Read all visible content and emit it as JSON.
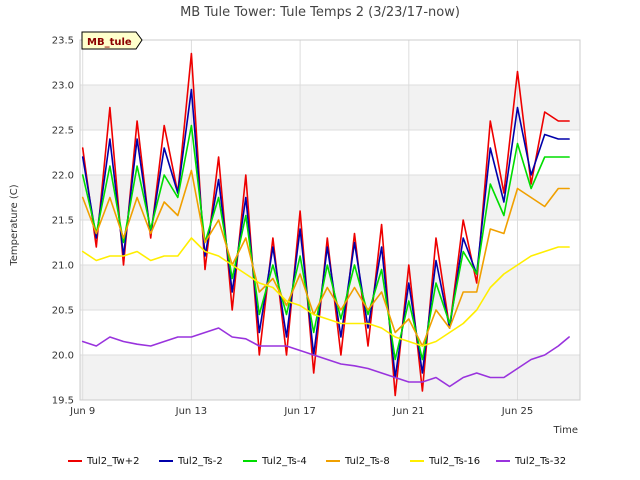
{
  "chart_data": {
    "type": "line",
    "title": "MB Tule Tower: Tule Temps 2 (3/23/17-now)",
    "xlabel": "Time",
    "ylabel": "Temperature (C)",
    "badge": "MB_tule",
    "xlim": [
      8.9,
      27.3
    ],
    "ylim": [
      19.5,
      23.5
    ],
    "x_ticks": [
      {
        "x": 9,
        "label": "Jun 9"
      },
      {
        "x": 13,
        "label": "Jun 13"
      },
      {
        "x": 17,
        "label": "Jun 17"
      },
      {
        "x": 21,
        "label": "Jun 21"
      },
      {
        "x": 25,
        "label": "Jun 25"
      }
    ],
    "y_ticks": [
      19.5,
      20.0,
      20.5,
      21.0,
      21.5,
      22.0,
      22.5,
      23.0,
      23.5
    ],
    "grid": true,
    "legend_position": "bottom",
    "series": [
      {
        "name": "Tul2_Tw+2",
        "color": "#ee0000",
        "x": [
          9.0,
          9.5,
          10.0,
          10.5,
          11.0,
          11.5,
          12.0,
          12.5,
          13.0,
          13.5,
          14.0,
          14.5,
          15.0,
          15.5,
          16.0,
          16.5,
          17.0,
          17.5,
          18.0,
          18.5,
          19.0,
          19.5,
          20.0,
          20.5,
          21.0,
          21.5,
          22.0,
          22.5,
          23.0,
          23.5,
          24.0,
          24.5,
          25.0,
          25.5,
          26.0,
          26.5,
          26.9
        ],
        "y": [
          22.3,
          21.2,
          22.75,
          21.0,
          22.6,
          21.3,
          22.55,
          21.8,
          23.35,
          20.95,
          22.2,
          20.5,
          22.0,
          20.0,
          21.3,
          20.0,
          21.6,
          19.8,
          21.3,
          20.0,
          21.35,
          20.1,
          21.45,
          19.55,
          21.0,
          19.6,
          21.3,
          20.3,
          21.5,
          20.8,
          22.6,
          21.8,
          23.15,
          21.9,
          22.7,
          22.6,
          22.6
        ]
      },
      {
        "name": "Tul2_Ts-2",
        "color": "#0000aa",
        "x": [
          9.0,
          9.5,
          10.0,
          10.5,
          11.0,
          11.5,
          12.0,
          12.5,
          13.0,
          13.5,
          14.0,
          14.5,
          15.0,
          15.5,
          16.0,
          16.5,
          17.0,
          17.5,
          18.0,
          18.5,
          19.0,
          19.5,
          20.0,
          20.5,
          21.0,
          21.5,
          22.0,
          22.5,
          23.0,
          23.5,
          24.0,
          24.5,
          25.0,
          25.5,
          26.0,
          26.5,
          26.9
        ],
        "y": [
          22.2,
          21.3,
          22.4,
          21.1,
          22.4,
          21.35,
          22.3,
          21.8,
          22.95,
          21.1,
          21.95,
          20.7,
          21.75,
          20.25,
          21.2,
          20.2,
          21.4,
          20.0,
          21.2,
          20.2,
          21.25,
          20.3,
          21.2,
          19.75,
          20.8,
          19.8,
          21.05,
          20.3,
          21.3,
          20.9,
          22.3,
          21.7,
          22.75,
          22.0,
          22.45,
          22.4,
          22.4
        ]
      },
      {
        "name": "Tul2_Ts-4",
        "color": "#00dd00",
        "x": [
          9.0,
          9.5,
          10.0,
          10.5,
          11.0,
          11.5,
          12.0,
          12.5,
          13.0,
          13.5,
          14.0,
          14.5,
          15.0,
          15.5,
          16.0,
          16.5,
          17.0,
          17.5,
          18.0,
          18.5,
          19.0,
          19.5,
          20.0,
          20.5,
          21.0,
          21.5,
          22.0,
          22.5,
          23.0,
          23.5,
          24.0,
          24.5,
          25.0,
          25.5,
          26.0,
          26.5,
          26.9
        ],
        "y": [
          22.0,
          21.35,
          22.1,
          21.25,
          22.1,
          21.4,
          22.0,
          21.75,
          22.55,
          21.25,
          21.75,
          20.85,
          21.55,
          20.45,
          21.0,
          20.45,
          21.1,
          20.25,
          21.0,
          20.4,
          21.0,
          20.45,
          20.95,
          19.95,
          20.6,
          19.95,
          20.8,
          20.35,
          21.15,
          20.9,
          21.9,
          21.55,
          22.35,
          21.85,
          22.2,
          22.2,
          22.2
        ]
      },
      {
        "name": "Tul2_Ts-8",
        "color": "#f0a000",
        "x": [
          9.0,
          9.5,
          10.0,
          10.5,
          11.0,
          11.5,
          12.0,
          12.5,
          13.0,
          13.5,
          14.0,
          14.5,
          15.0,
          15.5,
          16.0,
          16.5,
          17.0,
          17.5,
          18.0,
          18.5,
          19.0,
          19.5,
          20.0,
          20.5,
          21.0,
          21.5,
          22.0,
          22.5,
          23.0,
          23.5,
          24.0,
          24.5,
          25.0,
          25.5,
          26.0,
          26.5,
          26.9
        ],
        "y": [
          21.75,
          21.35,
          21.75,
          21.3,
          21.75,
          21.35,
          21.7,
          21.55,
          22.05,
          21.25,
          21.5,
          21.0,
          21.3,
          20.7,
          20.85,
          20.55,
          20.9,
          20.45,
          20.75,
          20.5,
          20.75,
          20.5,
          20.7,
          20.25,
          20.4,
          20.1,
          20.5,
          20.3,
          20.7,
          20.7,
          21.4,
          21.35,
          21.85,
          21.75,
          21.65,
          21.85,
          21.85
        ]
      },
      {
        "name": "Tul2_Ts-16",
        "color": "#ffee00",
        "x": [
          9.0,
          9.5,
          10.0,
          10.5,
          11.0,
          11.5,
          12.0,
          12.5,
          13.0,
          13.5,
          14.0,
          14.5,
          15.0,
          15.5,
          16.0,
          16.5,
          17.0,
          17.5,
          18.0,
          18.5,
          19.0,
          19.5,
          20.0,
          20.5,
          21.0,
          21.5,
          22.0,
          22.5,
          23.0,
          23.5,
          24.0,
          24.5,
          25.0,
          25.5,
          26.0,
          26.5,
          26.9
        ],
        "y": [
          21.15,
          21.05,
          21.1,
          21.1,
          21.15,
          21.05,
          21.1,
          21.1,
          21.3,
          21.15,
          21.1,
          21.0,
          20.9,
          20.8,
          20.75,
          20.6,
          20.55,
          20.45,
          20.4,
          20.35,
          20.35,
          20.35,
          20.3,
          20.2,
          20.15,
          20.1,
          20.15,
          20.25,
          20.35,
          20.5,
          20.75,
          20.9,
          21.0,
          21.1,
          21.15,
          21.2,
          21.2
        ]
      },
      {
        "name": "Tul2_Ts-32",
        "color": "#9933dd",
        "x": [
          9.0,
          9.5,
          10.0,
          10.5,
          11.0,
          11.5,
          12.0,
          12.5,
          13.0,
          13.5,
          14.0,
          14.5,
          15.0,
          15.5,
          16.0,
          16.5,
          17.0,
          17.5,
          18.0,
          18.5,
          19.0,
          19.5,
          20.0,
          20.5,
          21.0,
          21.5,
          22.0,
          22.5,
          23.0,
          23.5,
          24.0,
          24.5,
          25.0,
          25.5,
          26.0,
          26.5,
          26.9
        ],
        "y": [
          20.15,
          20.1,
          20.2,
          20.15,
          20.12,
          20.1,
          20.15,
          20.2,
          20.2,
          20.25,
          20.3,
          20.2,
          20.18,
          20.1,
          20.1,
          20.1,
          20.05,
          20.0,
          19.95,
          19.9,
          19.88,
          19.85,
          19.8,
          19.75,
          19.7,
          19.7,
          19.75,
          19.65,
          19.75,
          19.8,
          19.75,
          19.75,
          19.85,
          19.95,
          20.0,
          20.1,
          20.2
        ]
      }
    ]
  }
}
